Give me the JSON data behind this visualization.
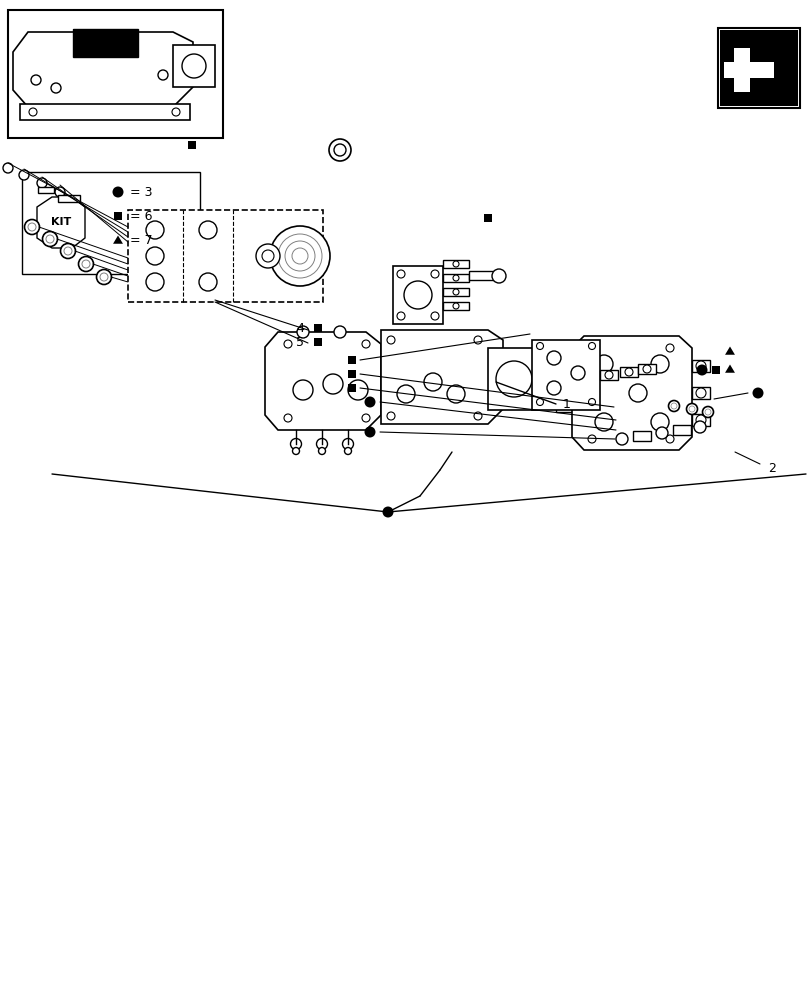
{
  "bg_color": "#ffffff",
  "line_color": "#000000",
  "kit_circle_val": 3,
  "kit_square_val": 6,
  "kit_triangle_val": 7,
  "label1": "1",
  "label2": "2",
  "label4": "4",
  "label5": "5"
}
